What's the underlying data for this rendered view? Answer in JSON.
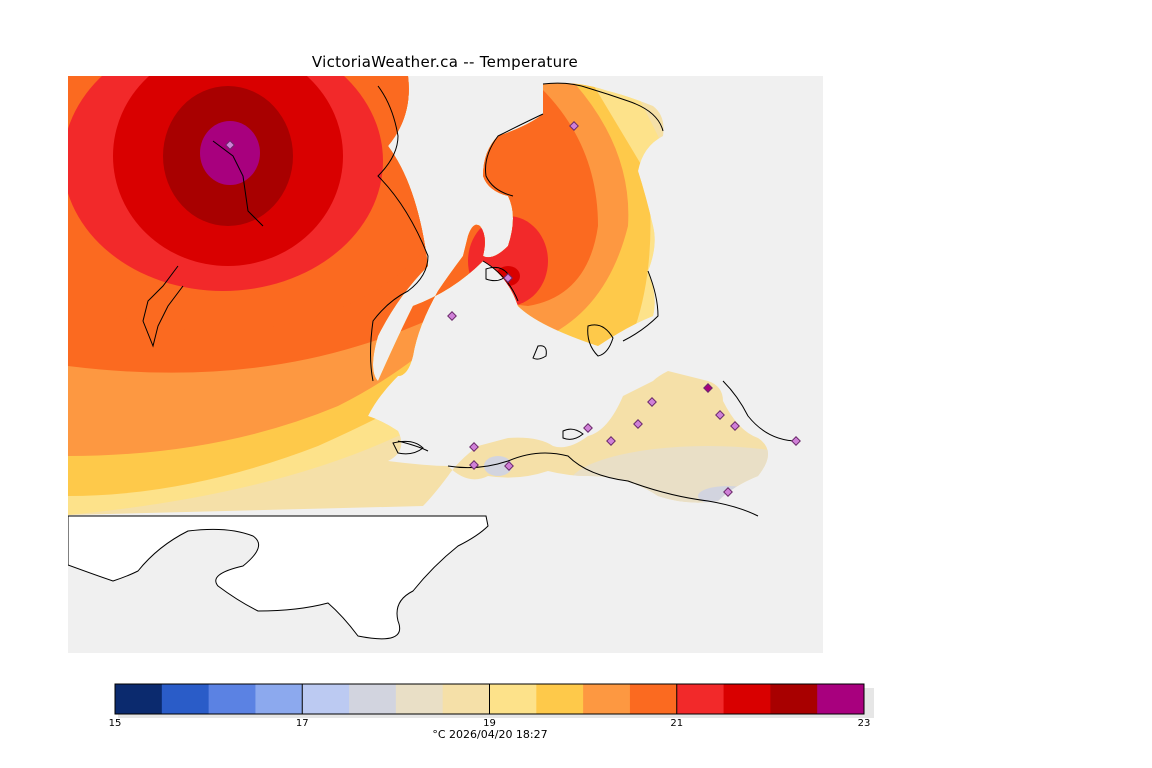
{
  "title": "VictoriaWeather.ca -- Temperature",
  "caption": "°C  2026/04/20 18:27",
  "legend": {
    "ticks": [
      "15",
      "17",
      "19",
      "21",
      "23"
    ],
    "bins": [
      {
        "from": 15.0,
        "to": 15.5,
        "color": "#0b2a6e"
      },
      {
        "from": 15.5,
        "to": 16.0,
        "color": "#2a5cc8"
      },
      {
        "from": 16.0,
        "to": 16.5,
        "color": "#5b82e3"
      },
      {
        "from": 16.5,
        "to": 17.0,
        "color": "#8ca9ee"
      },
      {
        "from": 17.0,
        "to": 17.5,
        "color": "#bccaf2"
      },
      {
        "from": 17.5,
        "to": 18.0,
        "color": "#d2d4df"
      },
      {
        "from": 18.0,
        "to": 18.5,
        "color": "#e9dfc6"
      },
      {
        "from": 18.5,
        "to": 19.0,
        "color": "#f5e0a8"
      },
      {
        "from": 19.0,
        "to": 19.5,
        "color": "#fde28a"
      },
      {
        "from": 19.5,
        "to": 20.0,
        "color": "#fec94a"
      },
      {
        "from": 20.0,
        "to": 20.5,
        "color": "#fd9841"
      },
      {
        "from": 20.5,
        "to": 21.0,
        "color": "#fb6a20"
      },
      {
        "from": 21.0,
        "to": 21.5,
        "color": "#f2292a"
      },
      {
        "from": 21.5,
        "to": 22.0,
        "color": "#d90000"
      },
      {
        "from": 22.0,
        "to": 22.5,
        "color": "#a80000"
      },
      {
        "from": 22.5,
        "to": 23.0,
        "color": "#a8007e"
      }
    ]
  },
  "colors": {
    "water": "#f0f0f0",
    "no_data_land": "#ffffff",
    "station_marker": "#d080d8"
  }
}
